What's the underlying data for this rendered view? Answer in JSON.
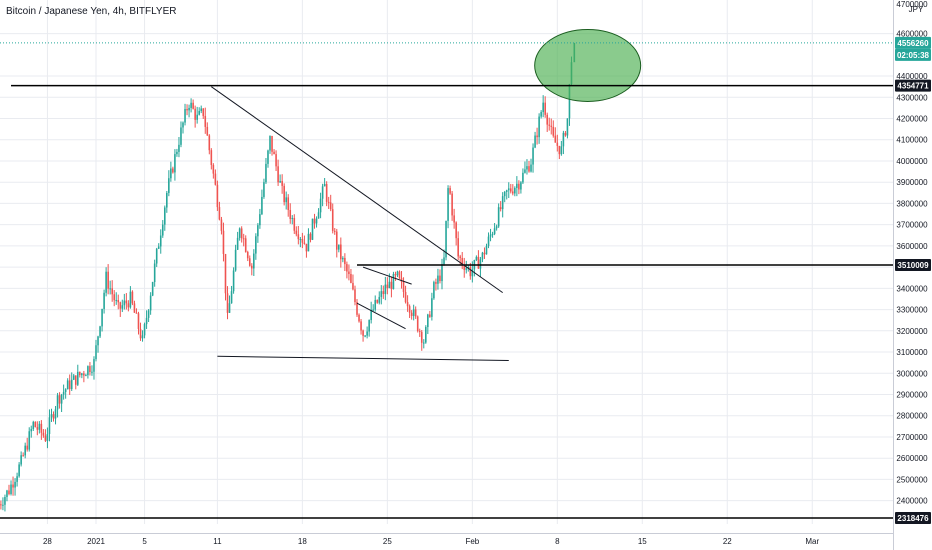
{
  "chart_data": {
    "type": "candlestick",
    "title": "Bitcoin / Japanese Yen, 4h, BITFLYER",
    "unit_label": "JPY",
    "ylim": [
      2290000,
      4730000
    ],
    "y_ticks": [
      2400000,
      2500000,
      2600000,
      2700000,
      2800000,
      2900000,
      3000000,
      3100000,
      3200000,
      3300000,
      3400000,
      3500000,
      3600000,
      3700000,
      3800000,
      3900000,
      4000000,
      4100000,
      4200000,
      4300000,
      4400000,
      4600000
    ],
    "y_tick_labels": [
      "2400000",
      "2500000",
      "2600000",
      "2700000",
      "2800000",
      "2900000",
      "3000000",
      "3100000",
      "3200000",
      "3300000",
      "3400000",
      "3500000",
      "3600000",
      "3700000",
      "3800000",
      "3900000",
      "4000000",
      "4100000",
      "4200000",
      "4300000",
      "4400000",
      "4600000"
    ],
    "top_cut_label": "4700000",
    "x_ticks": [
      {
        "label": "28",
        "day": -4
      },
      {
        "label": "2021",
        "day": 0
      },
      {
        "label": "5",
        "day": 4
      },
      {
        "label": "11",
        "day": 10
      },
      {
        "label": "18",
        "day": 17
      },
      {
        "label": "25",
        "day": 24
      },
      {
        "label": "Feb",
        "day": 31
      },
      {
        "label": "8",
        "day": 38
      },
      {
        "label": "15",
        "day": 45
      },
      {
        "label": "22",
        "day": 52
      },
      {
        "label": "Mar",
        "day": 59
      }
    ],
    "x_first_day": -8,
    "x_last_day": 63,
    "waypoints": [
      [
        -8,
        2370000
      ],
      [
        -7,
        2450000
      ],
      [
        -6,
        2580000
      ],
      [
        -5,
        2760000
      ],
      [
        -4,
        2700000
      ],
      [
        -3,
        2880000
      ],
      [
        -2,
        2950000
      ],
      [
        -1,
        3000000
      ],
      [
        0,
        3050000
      ],
      [
        1,
        3450000
      ],
      [
        2,
        3300000
      ],
      [
        3,
        3350000
      ],
      [
        4,
        3150000
      ],
      [
        5,
        3500000
      ],
      [
        6,
        3850000
      ],
      [
        7,
        4100000
      ],
      [
        7.8,
        4280000
      ],
      [
        8.5,
        4200000
      ],
      [
        9,
        4230000
      ],
      [
        10.5,
        3700000
      ],
      [
        11,
        3250000
      ],
      [
        12,
        3700000
      ],
      [
        13,
        3500000
      ],
      [
        14.5,
        4100000
      ],
      [
        15.5,
        3850000
      ],
      [
        16.5,
        3700000
      ],
      [
        17.5,
        3600000
      ],
      [
        19,
        3880000
      ],
      [
        20,
        3600000
      ],
      [
        21,
        3450000
      ],
      [
        22.2,
        3180000
      ],
      [
        23,
        3300000
      ],
      [
        24,
        3400000
      ],
      [
        25,
        3450000
      ],
      [
        26,
        3320000
      ],
      [
        27.2,
        3150000
      ],
      [
        28,
        3400000
      ],
      [
        28.8,
        3500000
      ],
      [
        29.2,
        3900000
      ],
      [
        30,
        3550000
      ],
      [
        31,
        3480000
      ],
      [
        32,
        3550000
      ],
      [
        33,
        3700000
      ],
      [
        34,
        3850000
      ],
      [
        35,
        3900000
      ],
      [
        36,
        4000000
      ],
      [
        37,
        4280000
      ],
      [
        37.8,
        4100000
      ],
      [
        38.5,
        4050000
      ],
      [
        39,
        4200000
      ],
      [
        39.4,
        4556260
      ]
    ],
    "annotations": {
      "resistance_line": {
        "value": 4354771,
        "label": "4354771",
        "x_start_day": -7
      },
      "mid_line": {
        "value": 3510009,
        "label": "3510009",
        "x_start_day": 21.5
      },
      "bottom_line": {
        "value": 2318476,
        "label": "2318476"
      },
      "last_price": {
        "value": 4556260,
        "label": "4556260"
      },
      "countdown": {
        "label": "02:05:38"
      },
      "descending_trendline": {
        "from": [
          9.5,
          4350000
        ],
        "to": [
          33.5,
          3380000
        ]
      },
      "support_trendline": {
        "from": [
          10,
          3080000
        ],
        "to": [
          34,
          3060000
        ]
      },
      "flag_upper": {
        "from": [
          22,
          3500000
        ],
        "to": [
          26,
          3420000
        ]
      },
      "flag_lower": {
        "from": [
          21.5,
          3330000
        ],
        "to": [
          25.5,
          3210000
        ]
      },
      "highlight_ellipse": {
        "center_day": 40.5,
        "center_value": 4450000
      }
    },
    "colors": {
      "up": "#26a69a",
      "down": "#ef5350",
      "line": "#000000",
      "trendline": "#131722",
      "ellipse_fill": "#4caf50",
      "ellipse_stroke": "#1b5e20",
      "tag_bg": "#26a69a",
      "grid": "#e9ebf0",
      "axis": "#c9ccd6"
    },
    "grid": true
  }
}
